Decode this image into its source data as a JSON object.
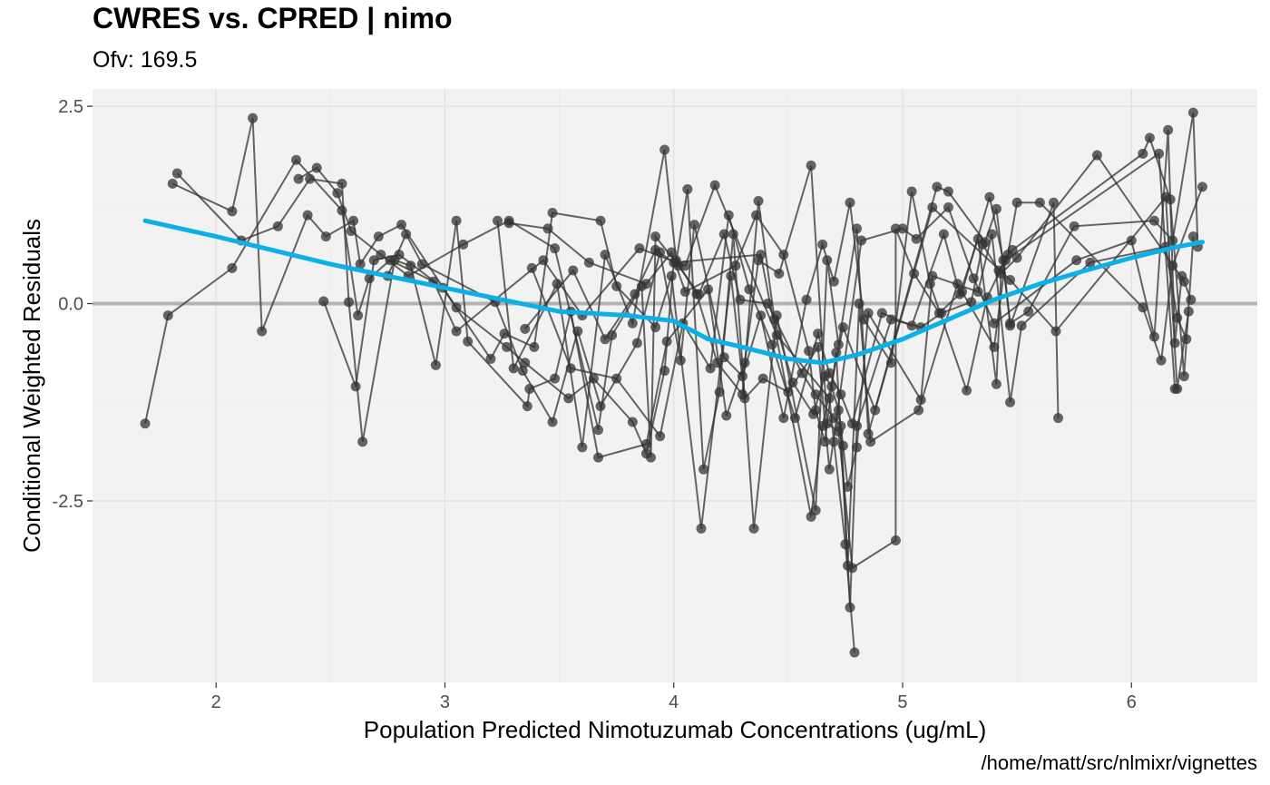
{
  "title": "CWRES vs. CPRED | nimo",
  "subtitle": "Ofv: 169.5",
  "caption": "/home/matt/src/nlmixr/vignettes",
  "colors": {
    "panel": "#f2f2f2",
    "grid": "#e0e0e0",
    "points": "#333333",
    "smooth": "#0bb1e6",
    "zero_line": "#b3b3b3"
  },
  "chart_data": {
    "type": "scatter",
    "title": "CWRES vs. CPRED | nimo",
    "subtitle": "Ofv: 169.5",
    "xlabel": "Population Predicted Nimotuzumab Concentrations (ug/mL)",
    "ylabel": "Conditional Weighted Residuals",
    "xlim": [
      1.46,
      6.55
    ],
    "ylim": [
      -4.8,
      2.72
    ],
    "x_ticks": [
      2,
      3,
      4,
      5,
      6
    ],
    "x_tick_labels": [
      "2",
      "3",
      "4",
      "5",
      "6"
    ],
    "y_ticks": [
      -2.5,
      0,
      2.5
    ],
    "y_tick_labels": [
      "-2.5",
      "0.0",
      "2.5"
    ],
    "reference_line_y": 0,
    "grid": true,
    "legend": "none",
    "series": [
      {
        "values": [
          [
            1.69,
            -1.52
          ],
          [
            1.79,
            -0.15
          ],
          [
            2.07,
            0.45
          ],
          [
            2.35,
            1.82
          ],
          [
            2.55,
            1.18
          ],
          [
            2.62,
            -0.15
          ],
          [
            2.67,
            0.32
          ],
          [
            2.76,
            0.55
          ],
          [
            2.95,
            0.28
          ],
          [
            3.05,
            -0.35
          ],
          [
            3.43,
            0.55
          ],
          [
            3.6,
            -0.15
          ],
          [
            3.85,
            0.7
          ],
          [
            4.05,
            0.48
          ],
          [
            4.18,
            1.5
          ],
          [
            4.45,
            -0.4
          ],
          [
            4.68,
            -1.2
          ],
          [
            4.7,
            -1.75
          ],
          [
            4.75,
            -3.05
          ],
          [
            4.79,
            -4.42
          ]
        ]
      },
      {
        "values": [
          [
            1.81,
            1.52
          ],
          [
            2.07,
            1.17
          ],
          [
            2.16,
            2.35
          ],
          [
            2.2,
            -0.35
          ],
          [
            2.4,
            1.12
          ],
          [
            2.48,
            0.85
          ],
          [
            2.6,
            1.05
          ],
          [
            2.63,
            0.5
          ],
          [
            2.71,
            0.85
          ],
          [
            2.81,
            1.0
          ],
          [
            3.05,
            -0.05
          ],
          [
            3.27,
            -0.55
          ],
          [
            3.35,
            -0.75
          ],
          [
            3.54,
            -1.2
          ],
          [
            3.65,
            -0.95
          ],
          [
            3.82,
            -1.5
          ],
          [
            3.88,
            -1.9
          ],
          [
            3.96,
            -0.85
          ],
          [
            4.0,
            0.52
          ],
          [
            4.38,
            0.62
          ],
          [
            4.6,
            -2.7
          ],
          [
            4.65,
            -1.55
          ],
          [
            4.74,
            -0.3
          ],
          [
            4.88,
            -1.35
          ],
          [
            5.13,
            1.22
          ],
          [
            5.47,
            0.3
          ],
          [
            5.67,
            -0.35
          ],
          [
            6.15,
            1.35
          ],
          [
            6.2,
            -1.08
          ],
          [
            6.25,
            -0.1
          ]
        ]
      },
      {
        "values": [
          [
            1.83,
            1.65
          ],
          [
            2.11,
            0.8
          ],
          [
            2.27,
            0.98
          ],
          [
            2.41,
            1.58
          ],
          [
            2.55,
            1.52
          ],
          [
            2.58,
            0.02
          ],
          [
            2.64,
            -1.75
          ],
          [
            2.78,
            0.55
          ],
          [
            2.85,
            0.48
          ],
          [
            2.96,
            -0.78
          ],
          [
            3.05,
            1.05
          ],
          [
            3.1,
            -0.48
          ],
          [
            3.36,
            -1.3
          ],
          [
            3.37,
            -1.08
          ],
          [
            3.48,
            -0.95
          ],
          [
            3.55,
            -0.1
          ],
          [
            3.67,
            -1.95
          ],
          [
            3.88,
            -1.78
          ],
          [
            3.97,
            -0.48
          ],
          [
            4.15,
            0.18
          ],
          [
            4.23,
            -1.42
          ],
          [
            4.31,
            -0.75
          ],
          [
            4.37,
            0.55
          ],
          [
            4.46,
            0.38
          ],
          [
            4.6,
            1.75
          ],
          [
            4.67,
            -1.52
          ],
          [
            4.72,
            -1.62
          ],
          [
            4.78,
            -3.35
          ],
          [
            4.97,
            -3.0
          ],
          [
            4.97,
            0.95
          ],
          [
            5.05,
            0.38
          ],
          [
            5.16,
            -0.12
          ],
          [
            5.26,
            0.15
          ],
          [
            5.38,
            1.35
          ],
          [
            5.44,
            0.55
          ],
          [
            5.47,
            -0.28
          ],
          [
            5.66,
            1.28
          ],
          [
            5.68,
            -1.45
          ]
        ]
      },
      {
        "values": [
          [
            2.36,
            1.58
          ],
          [
            2.44,
            1.72
          ],
          [
            2.53,
            1.4
          ],
          [
            2.59,
            0.92
          ],
          [
            2.72,
            0.62
          ],
          [
            2.84,
            0.35
          ],
          [
            3.08,
            0.75
          ],
          [
            3.28,
            1.05
          ],
          [
            3.48,
            0.7
          ],
          [
            3.67,
            -1.6
          ],
          [
            3.73,
            -0.4
          ],
          [
            3.86,
            0.22
          ],
          [
            3.9,
            -1.95
          ],
          [
            3.92,
            0.85
          ],
          [
            4.01,
            0.52
          ],
          [
            4.06,
            1.45
          ],
          [
            4.13,
            -2.1
          ],
          [
            4.2,
            -1.12
          ],
          [
            4.26,
            0.88
          ],
          [
            4.35,
            -2.85
          ],
          [
            4.45,
            -0.15
          ],
          [
            4.62,
            -2.62
          ],
          [
            4.67,
            0.55
          ],
          [
            4.72,
            -0.52
          ],
          [
            4.8,
            0.95
          ],
          [
            4.85,
            -1.65
          ],
          [
            5.15,
            1.48
          ],
          [
            5.2,
            1.42
          ],
          [
            5.36,
            0.78
          ],
          [
            5.41,
            1.2
          ],
          [
            5.47,
            -0.25
          ],
          [
            5.55,
            -0.1
          ],
          [
            5.75,
            0.98
          ],
          [
            6.1,
            1.05
          ],
          [
            6.18,
            0.8
          ],
          [
            6.27,
            2.42
          ],
          [
            6.29,
            0.72
          ]
        ]
      },
      {
        "values": [
          [
            2.47,
            0.03
          ],
          [
            2.61,
            -1.05
          ],
          [
            2.69,
            0.55
          ],
          [
            2.8,
            0.62
          ],
          [
            2.99,
            0.2
          ],
          [
            3.2,
            -0.7
          ],
          [
            3.26,
            -0.38
          ],
          [
            3.39,
            -0.55
          ],
          [
            3.47,
            1.15
          ],
          [
            3.68,
            1.05
          ],
          [
            3.75,
            0.22
          ],
          [
            3.92,
            -0.3
          ],
          [
            3.99,
            0.35
          ],
          [
            4.12,
            -2.85
          ],
          [
            4.25,
            0.35
          ],
          [
            4.31,
            -1.2
          ],
          [
            4.39,
            -0.95
          ],
          [
            4.5,
            -1.12
          ],
          [
            4.63,
            -0.55
          ],
          [
            4.68,
            -2.1
          ],
          [
            4.82,
            0.8
          ],
          [
            5.0,
            0.95
          ],
          [
            5.06,
            0.82
          ],
          [
            5.2,
            1.22
          ],
          [
            5.31,
            0.32
          ],
          [
            5.4,
            -0.25
          ],
          [
            5.76,
            0.55
          ],
          [
            6.0,
            0.8
          ],
          [
            6.1,
            -0.42
          ],
          [
            6.16,
            2.2
          ],
          [
            6.19,
            -0.5
          ],
          [
            6.22,
            0.35
          ]
        ]
      },
      {
        "values": [
          [
            2.75,
            0.35
          ],
          [
            2.83,
            0.88
          ],
          [
            2.9,
            0.5
          ],
          [
            3.22,
            0.02
          ],
          [
            3.34,
            -0.85
          ],
          [
            3.47,
            -1.5
          ],
          [
            3.58,
            -0.35
          ],
          [
            3.68,
            -1.3
          ],
          [
            3.84,
            -0.5
          ],
          [
            3.94,
            0.65
          ],
          [
            4.03,
            -0.72
          ],
          [
            4.09,
            1.0
          ],
          [
            4.22,
            -0.68
          ],
          [
            4.3,
            -0.92
          ],
          [
            4.38,
            -0.15
          ],
          [
            4.48,
            -1.45
          ],
          [
            4.58,
            0.05
          ],
          [
            4.65,
            0.75
          ],
          [
            4.7,
            0.28
          ],
          [
            4.77,
            1.28
          ],
          [
            4.83,
            -0.2
          ],
          [
            4.95,
            -0.75
          ],
          [
            5.04,
            1.42
          ],
          [
            5.12,
            0.25
          ],
          [
            5.28,
            -1.1
          ],
          [
            5.37,
            0.08
          ],
          [
            5.46,
            0.62
          ],
          [
            5.5,
            1.28
          ],
          [
            5.6,
            1.28
          ],
          [
            6.05,
            -0.05
          ],
          [
            6.13,
            -0.72
          ],
          [
            6.18,
            0.48
          ],
          [
            6.31,
            1.48
          ]
        ]
      },
      {
        "values": [
          [
            3.23,
            1.05
          ],
          [
            3.3,
            -0.82
          ],
          [
            3.49,
            0.25
          ],
          [
            3.6,
            -1.82
          ],
          [
            3.7,
            0.62
          ],
          [
            3.82,
            -0.25
          ],
          [
            3.96,
            1.95
          ],
          [
            4.01,
            0.55
          ],
          [
            4.1,
            0.12
          ],
          [
            4.19,
            -0.75
          ],
          [
            4.3,
            -1.15
          ],
          [
            4.37,
            1.3
          ],
          [
            4.44,
            -0.2
          ],
          [
            4.52,
            -1.0
          ],
          [
            4.61,
            -1.4
          ],
          [
            4.66,
            -0.92
          ],
          [
            4.69,
            -1.05
          ],
          [
            4.72,
            -1.35
          ],
          [
            4.74,
            -1.8
          ],
          [
            4.76,
            -2.32
          ],
          [
            4.8,
            -1.82
          ],
          [
            4.85,
            -0.12
          ],
          [
            5.08,
            -1.22
          ],
          [
            5.13,
            0.35
          ],
          [
            5.33,
            0.15
          ],
          [
            5.39,
            0.88
          ],
          [
            5.47,
            -1.25
          ],
          [
            5.52,
            -0.28
          ],
          [
            5.82,
            0.52
          ],
          [
            6.15,
            0.72
          ],
          [
            6.2,
            -0.18
          ],
          [
            6.24,
            -0.45
          ]
        ]
      },
      {
        "values": [
          [
            3.28,
            1.02
          ],
          [
            3.45,
            0.95
          ],
          [
            3.63,
            0.52
          ],
          [
            3.88,
            0.25
          ],
          [
            3.99,
            0.65
          ],
          [
            4.05,
            0.15
          ],
          [
            4.27,
            0.48
          ],
          [
            4.36,
            1.12
          ],
          [
            4.48,
            0.62
          ],
          [
            4.59,
            -0.6
          ],
          [
            4.62,
            -1.35
          ],
          [
            4.66,
            -1.75
          ],
          [
            4.71,
            -0.62
          ],
          [
            4.76,
            -3.32
          ],
          [
            4.81,
            0.0
          ],
          [
            4.86,
            -1.75
          ],
          [
            5.07,
            -1.35
          ],
          [
            5.24,
            0.25
          ],
          [
            5.4,
            -0.55
          ],
          [
            5.45,
            0.55
          ],
          [
            6.12,
            1.9
          ],
          [
            6.19,
            -1.08
          ]
        ]
      },
      {
        "values": [
          [
            3.35,
            -0.32
          ],
          [
            3.56,
            0.42
          ],
          [
            3.7,
            -0.45
          ],
          [
            3.83,
            0.12
          ],
          [
            3.92,
            0.68
          ],
          [
            4.02,
            0.48
          ],
          [
            4.11,
            0.12
          ],
          [
            4.22,
            0.88
          ],
          [
            4.29,
            0.05
          ],
          [
            4.41,
            0.0
          ],
          [
            4.56,
            -0.88
          ],
          [
            4.62,
            -1.15
          ],
          [
            4.7,
            -1.45
          ],
          [
            4.73,
            -1.55
          ],
          [
            4.77,
            -3.85
          ],
          [
            4.8,
            -1.55
          ],
          [
            4.95,
            -0.2
          ],
          [
            5.08,
            -0.3
          ],
          [
            5.17,
            -0.12
          ],
          [
            5.3,
            0.02
          ],
          [
            5.35,
            0.75
          ],
          [
            5.42,
            0.42
          ],
          [
            5.48,
            0.68
          ],
          [
            6.05,
            1.9
          ],
          [
            6.08,
            2.1
          ],
          [
            6.17,
            1.32
          ],
          [
            6.23,
            -0.92
          ],
          [
            6.27,
            0.85
          ]
        ]
      },
      {
        "values": [
          [
            3.38,
            0.45
          ],
          [
            3.55,
            -0.82
          ],
          [
            3.75,
            -0.95
          ],
          [
            3.94,
            -1.68
          ],
          [
            4.04,
            -0.25
          ],
          [
            4.16,
            -0.82
          ],
          [
            4.24,
            1.12
          ],
          [
            4.33,
            0.18
          ],
          [
            4.43,
            -0.52
          ],
          [
            4.53,
            -1.45
          ],
          [
            4.63,
            -0.38
          ],
          [
            4.68,
            -0.88
          ],
          [
            4.73,
            -1.15
          ],
          [
            4.78,
            -1.52
          ],
          [
            4.91,
            -0.12
          ],
          [
            5.04,
            -0.28
          ],
          [
            5.18,
            0.88
          ],
          [
            5.25,
            0.12
          ],
          [
            5.33,
            0.82
          ],
          [
            5.41,
            -1.02
          ],
          [
            5.43,
            0.38
          ],
          [
            5.5,
            0.58
          ],
          [
            5.85,
            1.88
          ],
          [
            6.23,
            0.28
          ],
          [
            6.26,
            0.05
          ]
        ]
      }
    ],
    "smooth": {
      "x": [
        1.69,
        2.0,
        2.5,
        3.0,
        3.5,
        3.8,
        4.0,
        4.15,
        4.3,
        4.5,
        4.65,
        4.8,
        5.0,
        5.2,
        5.4,
        5.6,
        5.8,
        6.0,
        6.2,
        6.31
      ],
      "y": [
        1.05,
        0.85,
        0.5,
        0.2,
        -0.1,
        -0.15,
        -0.22,
        -0.45,
        -0.55,
        -0.7,
        -0.75,
        -0.65,
        -0.45,
        -0.2,
        0.05,
        0.25,
        0.42,
        0.58,
        0.72,
        0.78
      ]
    }
  }
}
